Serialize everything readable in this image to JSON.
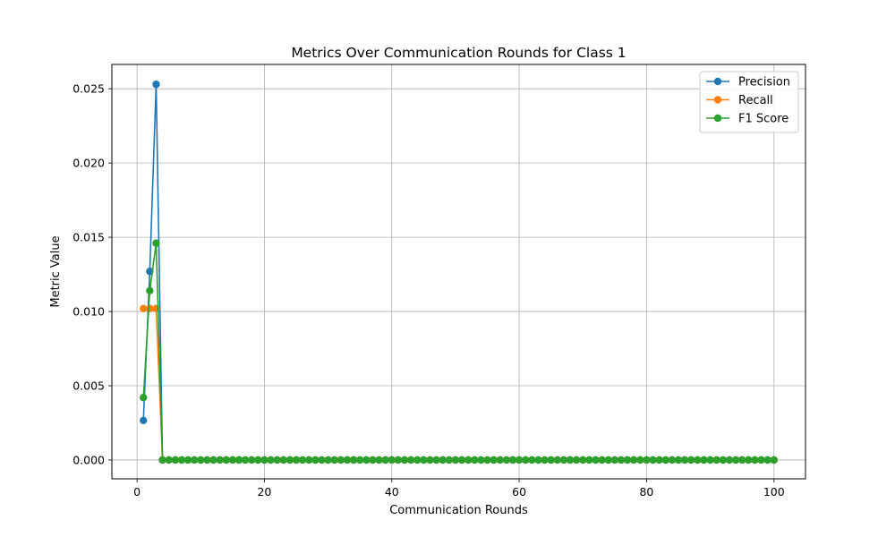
{
  "chart_data": {
    "type": "line",
    "title": "Metrics Over Communication Rounds for Class 1",
    "xlabel": "Communication Rounds",
    "ylabel": "Metric Value",
    "xlim": [
      -3.95,
      104.95
    ],
    "ylim": [
      -0.00127,
      0.02664
    ],
    "xticks": [
      0,
      20,
      40,
      60,
      80,
      100
    ],
    "xtick_labels": [
      "0",
      "20",
      "40",
      "60",
      "80",
      "100"
    ],
    "yticks": [
      0.0,
      0.005,
      0.01,
      0.015,
      0.02,
      0.025
    ],
    "ytick_labels": [
      "0.000",
      "0.005",
      "0.010",
      "0.015",
      "0.020",
      "0.025"
    ],
    "grid": true,
    "legend_position": "top-right",
    "x_start": 1,
    "x_end": 100,
    "series": [
      {
        "name": "Precision",
        "color": "#1f77b4",
        "head": [
          0.00266,
          0.0127,
          0.0253
        ],
        "tail": 0.0
      },
      {
        "name": "Recall",
        "color": "#ff7f0e",
        "head": [
          0.0102,
          0.0102,
          0.0102
        ],
        "tail": 0.0
      },
      {
        "name": "F1 Score",
        "color": "#2ca02c",
        "head": [
          0.0042,
          0.0114,
          0.0146
        ],
        "tail": 0.0
      }
    ]
  }
}
